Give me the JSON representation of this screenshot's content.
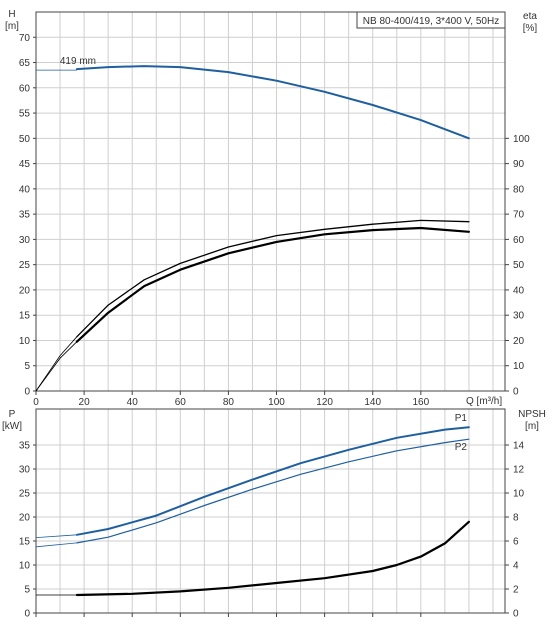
{
  "chart_data": [
    {
      "type": "line",
      "title": "NB 80-400/419, 3*400 V, 50Hz",
      "x_label": "Q [m³/h]",
      "x_ticks": [
        0,
        20,
        40,
        60,
        80,
        100,
        120,
        140,
        160
      ],
      "xlim": [
        0,
        195
      ],
      "left_axis": {
        "label_top": "H",
        "label_unit": "[m]",
        "ylim": [
          0,
          75
        ],
        "ticks": [
          0,
          5,
          10,
          15,
          20,
          25,
          30,
          35,
          40,
          45,
          50,
          55,
          60,
          65,
          70
        ]
      },
      "right_axis": {
        "label_top": "eta",
        "label_unit": "[%]",
        "ylim": [
          0,
          150
        ],
        "ticks": [
          0,
          10,
          20,
          30,
          40,
          50,
          60,
          70,
          80,
          90,
          100
        ]
      },
      "grid": true,
      "colors": {
        "head": "#1f5fa0",
        "eta": "#000000"
      },
      "series": [
        {
          "name": "419 mm",
          "axis": "left",
          "thin": {
            "x": [
              0,
              17
            ],
            "y": [
              63.5,
              63.5
            ]
          },
          "x": [
            17,
            30,
            45,
            60,
            80,
            100,
            120,
            140,
            160,
            180
          ],
          "y": [
            63.7,
            64.1,
            64.3,
            64.1,
            63.1,
            61.4,
            59.2,
            56.6,
            53.6,
            50.0
          ]
        },
        {
          "name": "",
          "axis": "right",
          "thin": {
            "x": [
              0,
              5,
              10,
              17
            ],
            "y": [
              0,
              7,
              14,
              21.5
            ]
          },
          "x": [
            17,
            30,
            45,
            60,
            80,
            100,
            120,
            140,
            160,
            180
          ],
          "y": [
            21.5,
            34,
            44,
            50.5,
            57,
            61.5,
            64,
            66,
            67.5,
            67
          ]
        },
        {
          "name": "",
          "axis": "right",
          "thin": {
            "x": [
              0,
              5,
              10,
              17
            ],
            "y": [
              0,
              6.5,
              13,
              19.5
            ]
          },
          "x": [
            17,
            30,
            45,
            60,
            80,
            100,
            120,
            140,
            160,
            180
          ],
          "y": [
            19.5,
            31,
            41.5,
            48,
            54.5,
            59,
            62,
            63.7,
            64.5,
            63
          ]
        }
      ]
    },
    {
      "type": "line",
      "xlim": [
        0,
        195
      ],
      "x_ticks": [
        0,
        20,
        40,
        60,
        80,
        100,
        120,
        140,
        160
      ],
      "left_axis": {
        "label_top": "P",
        "label_unit": "[kW]",
        "ylim": [
          0,
          42.5
        ],
        "ticks": [
          0,
          5,
          10,
          15,
          20,
          25,
          30,
          35
        ]
      },
      "right_axis": {
        "label_top": "NPSH",
        "label_unit": "[m]",
        "ylim": [
          0,
          17
        ],
        "ticks": [
          0,
          2,
          4,
          6,
          8,
          10,
          12,
          14
        ]
      },
      "grid": true,
      "colors": {
        "power": "#1f5fa0",
        "npsh": "#000000"
      },
      "series": [
        {
          "name": "P1",
          "axis": "left",
          "thin": {
            "x": [
              0,
              17
            ],
            "y": [
              15.7,
              16.3
            ]
          },
          "x": [
            17,
            30,
            50,
            70,
            90,
            110,
            130,
            150,
            170,
            180
          ],
          "y": [
            16.3,
            17.5,
            20.3,
            24.2,
            27.8,
            31.2,
            34,
            36.5,
            38.2,
            38.7
          ]
        },
        {
          "name": "P2",
          "axis": "left",
          "thin": {
            "x": [
              0,
              17
            ],
            "y": [
              13.8,
              14.6
            ]
          },
          "x": [
            17,
            30,
            50,
            70,
            90,
            110,
            130,
            150,
            170,
            180
          ],
          "y": [
            14.6,
            15.8,
            18.8,
            22.4,
            25.8,
            28.9,
            31.5,
            33.8,
            35.5,
            36.2
          ]
        },
        {
          "name": "",
          "axis": "right",
          "thin": {
            "x": [
              0,
              17
            ],
            "y": [
              1.5,
              1.5
            ]
          },
          "x": [
            17,
            40,
            60,
            80,
            100,
            120,
            140,
            150,
            160,
            170,
            180
          ],
          "y": [
            1.5,
            1.6,
            1.8,
            2.1,
            2.5,
            2.9,
            3.5,
            4.0,
            4.7,
            5.8,
            7.6
          ]
        }
      ]
    }
  ]
}
